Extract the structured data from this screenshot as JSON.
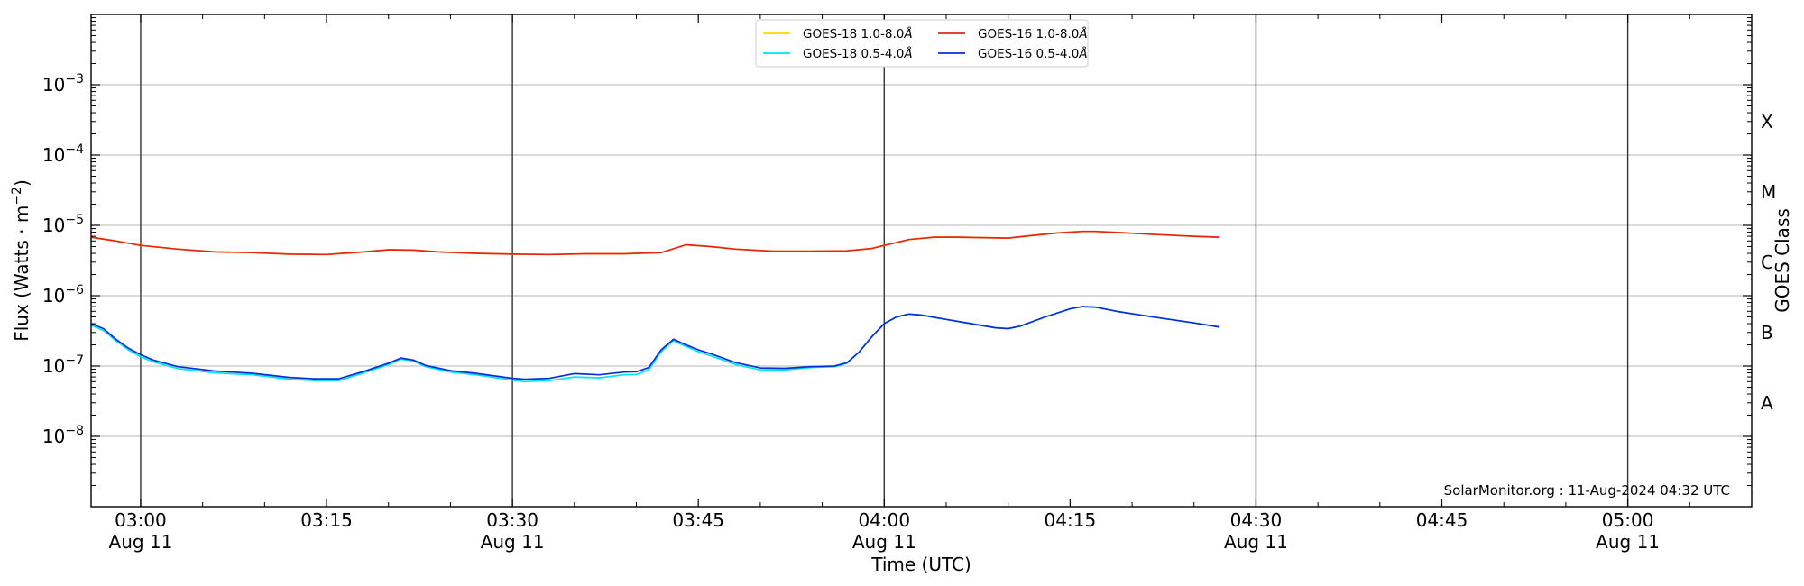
{
  "chart_data": {
    "type": "line",
    "xlabel": "Time (UTC)",
    "ylabel": "Flux (Watts · m",
    "ylabel_sup": "−2",
    "ylabel_close": ")",
    "right_label": "GOES Class",
    "yscale": "log",
    "ylim": [
      1e-09,
      0.01
    ],
    "xlim": [
      "02:56",
      "05:10"
    ],
    "grid": "horizontal at decades, vertical at every 30 minutes",
    "legend_position": "top-center",
    "y_ticks": [
      {
        "value": 1e-08,
        "base": "10",
        "exp": "−8"
      },
      {
        "value": 1e-07,
        "base": "10",
        "exp": "−7"
      },
      {
        "value": 1e-06,
        "base": "10",
        "exp": "−6"
      },
      {
        "value": 1e-05,
        "base": "10",
        "exp": "−5"
      },
      {
        "value": 0.0001,
        "base": "10",
        "exp": "−4"
      },
      {
        "value": 0.001,
        "base": "10",
        "exp": "−3"
      }
    ],
    "x_ticks": [
      {
        "time": "03:00",
        "label": "03:00",
        "date": "Aug 11"
      },
      {
        "time": "03:15",
        "label": "03:15",
        "date": ""
      },
      {
        "time": "03:30",
        "label": "03:30",
        "date": "Aug 11"
      },
      {
        "time": "03:45",
        "label": "03:45",
        "date": ""
      },
      {
        "time": "04:00",
        "label": "04:00",
        "date": "Aug 11"
      },
      {
        "time": "04:15",
        "label": "04:15",
        "date": ""
      },
      {
        "time": "04:30",
        "label": "04:30",
        "date": "Aug 11"
      },
      {
        "time": "04:45",
        "label": "04:45",
        "date": ""
      },
      {
        "time": "05:00",
        "label": "05:00",
        "date": "Aug 11"
      }
    ],
    "class_labels": [
      {
        "label": "A",
        "value": 3e-08
      },
      {
        "label": "B",
        "value": 3e-07
      },
      {
        "label": "C",
        "value": 3e-06
      },
      {
        "label": "M",
        "value": 3e-05
      },
      {
        "label": "X",
        "value": 0.0003
      }
    ],
    "series": [
      {
        "name": "GOES-18 1.0-8.0",
        "color": "#ffd700",
        "x": [
          "02:56",
          "02:58",
          "03:00",
          "03:03",
          "03:06",
          "03:09",
          "03:12",
          "03:15",
          "03:18",
          "03:20",
          "03:22",
          "03:24",
          "03:27",
          "03:30",
          "03:33",
          "03:36",
          "03:39",
          "03:42",
          "03:44",
          "03:46",
          "03:48",
          "03:51",
          "03:54",
          "03:57",
          "03:59",
          "04:00",
          "04:02",
          "04:04",
          "04:06",
          "04:08",
          "04:10",
          "04:12",
          "04:14",
          "04:16",
          "04:17",
          "04:19",
          "04:22",
          "04:25",
          "04:27"
        ],
        "values": [
          6.8e-06,
          6e-06,
          5.2e-06,
          4.6e-06,
          4.2e-06,
          4.1e-06,
          3.9e-06,
          3.85e-06,
          4.2e-06,
          4.5e-06,
          4.45e-06,
          4.2e-06,
          4e-06,
          3.9e-06,
          3.85e-06,
          3.95e-06,
          3.95e-06,
          4.1e-06,
          5.3e-06,
          5e-06,
          4.6e-06,
          4.3e-06,
          4.3e-06,
          4.35e-06,
          4.7e-06,
          5.2e-06,
          6.3e-06,
          6.8e-06,
          6.8e-06,
          6.7e-06,
          6.6e-06,
          7.2e-06,
          7.8e-06,
          8.2e-06,
          8.2e-06,
          7.9e-06,
          7.4e-06,
          7e-06,
          6.8e-06
        ]
      },
      {
        "name": "GOES-16 1.0-8.0",
        "color": "#e8250e",
        "x": [
          "02:56",
          "02:58",
          "03:00",
          "03:03",
          "03:06",
          "03:09",
          "03:12",
          "03:15",
          "03:18",
          "03:20",
          "03:22",
          "03:24",
          "03:27",
          "03:30",
          "03:33",
          "03:36",
          "03:39",
          "03:42",
          "03:44",
          "03:46",
          "03:48",
          "03:51",
          "03:54",
          "03:57",
          "03:59",
          "04:00",
          "04:02",
          "04:04",
          "04:06",
          "04:08",
          "04:10",
          "04:12",
          "04:14",
          "04:16",
          "04:17",
          "04:19",
          "04:22",
          "04:25",
          "04:27"
        ],
        "values": [
          6.8e-06,
          6e-06,
          5.2e-06,
          4.6e-06,
          4.2e-06,
          4.1e-06,
          3.9e-06,
          3.85e-06,
          4.2e-06,
          4.5e-06,
          4.45e-06,
          4.2e-06,
          4e-06,
          3.9e-06,
          3.85e-06,
          3.95e-06,
          3.95e-06,
          4.1e-06,
          5.3e-06,
          5e-06,
          4.6e-06,
          4.3e-06,
          4.3e-06,
          4.35e-06,
          4.7e-06,
          5.2e-06,
          6.3e-06,
          6.8e-06,
          6.8e-06,
          6.7e-06,
          6.6e-06,
          7.2e-06,
          7.8e-06,
          8.2e-06,
          8.2e-06,
          7.9e-06,
          7.4e-06,
          7e-06,
          6.8e-06
        ]
      },
      {
        "name": "GOES-18 0.5-4.0",
        "color": "#00e5ee",
        "x": [
          "02:56",
          "02:57",
          "02:58",
          "02:59",
          "03:00",
          "03:01",
          "03:03",
          "03:06",
          "03:09",
          "03:12",
          "03:14",
          "03:16",
          "03:18",
          "03:20",
          "03:21",
          "03:22",
          "03:23",
          "03:25",
          "03:27",
          "03:30",
          "03:31",
          "03:33",
          "03:35",
          "03:37",
          "03:39",
          "03:40",
          "03:41",
          "03:42",
          "03:43",
          "03:44",
          "03:45",
          "03:46",
          "03:48",
          "03:50",
          "03:52",
          "03:54",
          "03:56",
          "03:57",
          "03:58",
          "03:59",
          "04:00",
          "04:01",
          "04:02",
          "04:03",
          "04:05",
          "04:07",
          "04:09",
          "04:10",
          "04:11",
          "04:13",
          "04:15",
          "04:16",
          "04:17",
          "04:19",
          "04:22",
          "04:25",
          "04:27"
        ],
        "values": [
          3.8e-07,
          3.2e-07,
          2.3e-07,
          1.7e-07,
          1.35e-07,
          1.15e-07,
          9.2e-08,
          8e-08,
          7.5e-08,
          6.5e-08,
          6.2e-08,
          6.2e-08,
          8e-08,
          1.05e-07,
          1.25e-07,
          1.18e-07,
          9.8e-08,
          8.2e-08,
          7.5e-08,
          6.3e-08,
          6e-08,
          6.2e-08,
          7e-08,
          6.8e-08,
          7.5e-08,
          7.6e-08,
          8.8e-08,
          1.6e-07,
          2.3e-07,
          1.9e-07,
          1.6e-07,
          1.4e-07,
          1.05e-07,
          8.8e-08,
          8.8e-08,
          9.5e-08,
          9.8e-08,
          1.1e-07,
          1.6e-07,
          2.6e-07,
          4e-07,
          5e-07,
          5.5e-07,
          5.3e-07,
          4.6e-07,
          4e-07,
          3.5e-07,
          3.4e-07,
          3.7e-07,
          5e-07,
          6.5e-07,
          7e-07,
          6.9e-07,
          5.9e-07,
          4.9e-07,
          4.1e-07,
          3.6e-07
        ]
      },
      {
        "name": "GOES-16 0.5-4.0",
        "color": "#0a2ed8",
        "x": [
          "02:56",
          "02:57",
          "02:58",
          "02:59",
          "03:00",
          "03:01",
          "03:03",
          "03:06",
          "03:09",
          "03:12",
          "03:14",
          "03:16",
          "03:18",
          "03:20",
          "03:21",
          "03:22",
          "03:23",
          "03:25",
          "03:27",
          "03:30",
          "03:31",
          "03:33",
          "03:35",
          "03:37",
          "03:39",
          "03:40",
          "03:41",
          "03:42",
          "03:43",
          "03:44",
          "03:45",
          "03:46",
          "03:48",
          "03:50",
          "03:52",
          "03:54",
          "03:56",
          "03:57",
          "03:58",
          "03:59",
          "04:00",
          "04:01",
          "04:02",
          "04:03",
          "04:05",
          "04:07",
          "04:09",
          "04:10",
          "04:11",
          "04:13",
          "04:15",
          "04:16",
          "04:17",
          "04:19",
          "04:22",
          "04:25",
          "04:27"
        ],
        "values": [
          4e-07,
          3.4e-07,
          2.4e-07,
          1.8e-07,
          1.45e-07,
          1.22e-07,
          9.8e-08,
          8.5e-08,
          7.9e-08,
          6.9e-08,
          6.6e-08,
          6.6e-08,
          8.4e-08,
          1.1e-07,
          1.3e-07,
          1.22e-07,
          1.02e-07,
          8.6e-08,
          7.9e-08,
          6.7e-08,
          6.5e-08,
          6.7e-08,
          7.8e-08,
          7.5e-08,
          8.2e-08,
          8.3e-08,
          9.5e-08,
          1.7e-07,
          2.4e-07,
          2e-07,
          1.7e-07,
          1.5e-07,
          1.12e-07,
          9.4e-08,
          9.3e-08,
          9.8e-08,
          1e-07,
          1.12e-07,
          1.6e-07,
          2.6e-07,
          4e-07,
          5e-07,
          5.5e-07,
          5.3e-07,
          4.6e-07,
          4e-07,
          3.5e-07,
          3.4e-07,
          3.7e-07,
          5e-07,
          6.5e-07,
          7e-07,
          6.9e-07,
          5.9e-07,
          4.9e-07,
          4.1e-07,
          3.6e-07
        ]
      }
    ],
    "legend": [
      {
        "name": "GOES-18 1.0-8.0",
        "unit": "Å",
        "color": "#ffd700"
      },
      {
        "name": "GOES-18 0.5-4.0",
        "unit": "Å",
        "color": "#00e5ee"
      },
      {
        "name": "GOES-16 1.0-8.0",
        "unit": "Å",
        "color": "#e8250e"
      },
      {
        "name": "GOES-16 0.5-4.0",
        "unit": "Å",
        "color": "#0a2ed8"
      }
    ],
    "annotation": "SolarMonitor.org : 11-Aug-2024 04:32 UTC"
  }
}
